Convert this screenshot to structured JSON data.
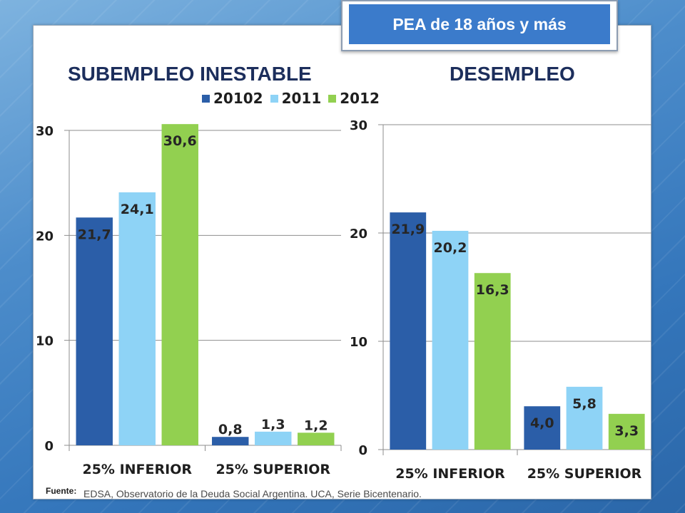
{
  "header": {
    "badge_label": "PEA de 18 años y más"
  },
  "chart_data": [
    {
      "type": "bar",
      "title": "SUBEMPLEO INESTABLE",
      "categories": [
        "25% INFERIOR",
        "25% SUPERIOR"
      ],
      "series": [
        {
          "name": "20102",
          "values": [
            21.7,
            0.8
          ],
          "labels": [
            "21,7",
            "0,8"
          ],
          "color": "#2B5EA8"
        },
        {
          "name": "2011",
          "values": [
            24.1,
            1.3
          ],
          "labels": [
            "24,1",
            "1,3"
          ],
          "color": "#8ED3F6"
        },
        {
          "name": "2012",
          "values": [
            30.6,
            1.2
          ],
          "labels": [
            "30,6",
            "1,2"
          ],
          "color": "#92D050"
        }
      ],
      "ylim": [
        0,
        30
      ],
      "yticks": [
        0,
        10,
        20,
        30
      ],
      "grid": true,
      "legend": "top"
    },
    {
      "type": "bar",
      "title": "DESEMPLEO",
      "categories": [
        "25% INFERIOR",
        "25% SUPERIOR"
      ],
      "series": [
        {
          "name": "20102",
          "values": [
            21.9,
            4.0
          ],
          "labels": [
            "21,9",
            "4,0"
          ],
          "color": "#2B5EA8"
        },
        {
          "name": "2011",
          "values": [
            20.2,
            5.8
          ],
          "labels": [
            "20,2",
            "5,8"
          ],
          "color": "#8ED3F6"
        },
        {
          "name": "2012",
          "values": [
            16.3,
            3.3
          ],
          "labels": [
            "16,3",
            "3,3"
          ],
          "color": "#92D050"
        }
      ],
      "ylim": [
        0,
        30
      ],
      "yticks": [
        0,
        10,
        20,
        30
      ],
      "grid": true,
      "legend": "top"
    }
  ],
  "source": {
    "label": "Fuente:",
    "text": "EDSA, Observatorio de la Deuda Social Argentina. UCA, Serie Bicentenario."
  },
  "colors": {
    "title": "#1C2E5C",
    "badge": "#3B7BCB",
    "panel": "#FFFFFF"
  }
}
